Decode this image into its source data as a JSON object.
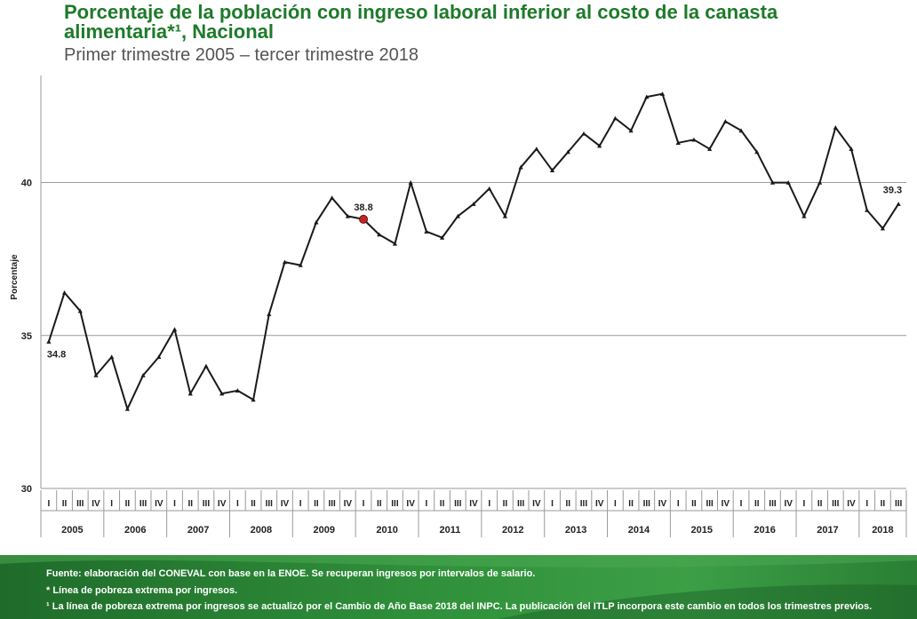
{
  "chart_data": {
    "type": "line",
    "title": "Porcentaje de la población con ingreso laboral inferior al costo de la canasta alimentaria*¹, Nacional",
    "subtitle": "Primer trimestre 2005 – tercer trimestre 2018",
    "ylabel": "Porcentaje",
    "ylim": [
      30,
      43.5
    ],
    "yticks": [
      30,
      35,
      40
    ],
    "grid": true,
    "quarter_labels": [
      "I",
      "II",
      "III",
      "IV"
    ],
    "years": [
      "2005",
      "2006",
      "2007",
      "2008",
      "2009",
      "2010",
      "2011",
      "2012",
      "2013",
      "2014",
      "2015",
      "2016",
      "2017",
      "2018"
    ],
    "series": [
      {
        "color": "#1a1a1a",
        "values": [
          34.8,
          36.4,
          35.8,
          33.7,
          34.3,
          32.6,
          33.7,
          34.3,
          35.2,
          33.1,
          34.0,
          33.1,
          33.2,
          32.9,
          35.7,
          37.4,
          37.3,
          38.7,
          39.5,
          38.9,
          38.8,
          38.3,
          38.0,
          40.0,
          38.4,
          38.2,
          38.9,
          39.3,
          39.8,
          38.9,
          40.5,
          41.1,
          40.4,
          41.0,
          41.6,
          41.2,
          42.1,
          41.7,
          42.8,
          42.9,
          41.3,
          41.4,
          41.1,
          42.0,
          41.7,
          41.0,
          40.0,
          40.0,
          38.9,
          40.0,
          41.8,
          41.1,
          39.1,
          38.5,
          39.3
        ]
      }
    ],
    "data_labels": [
      {
        "index": 0,
        "text": "34.8"
      },
      {
        "index": 20,
        "text": "38.8",
        "highlight": true
      },
      {
        "index": 54,
        "text": "39.3"
      }
    ],
    "highlight_color": "#c0242a"
  },
  "footer": {
    "note1": "Fuente: elaboración del CONEVAL con base en la ENOE. Se recuperan ingresos por intervalos de salario.",
    "note2": "* Línea de pobreza extrema por ingresos.",
    "note3": "¹ La línea de pobreza extrema por ingresos se actualizó por el Cambio de Año Base 2018 del INPC. La publicación del ITLP incorpora este cambio en todos los trimestres previos."
  }
}
